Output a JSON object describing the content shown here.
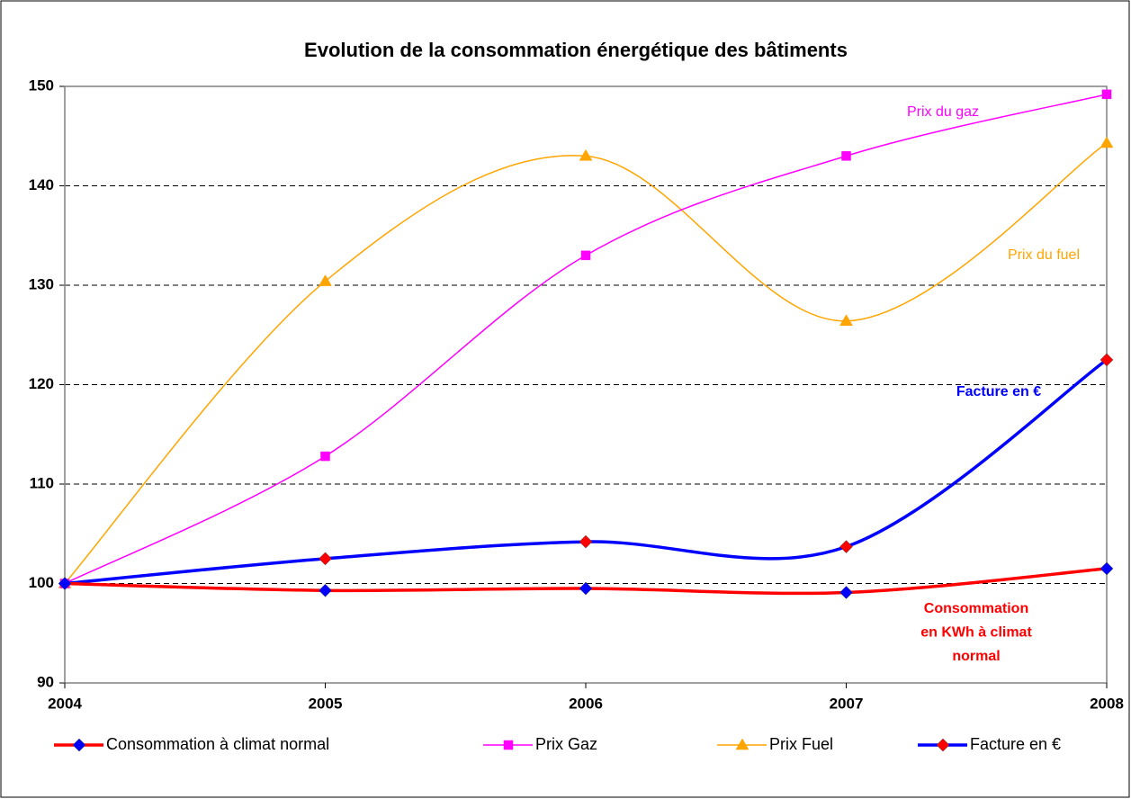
{
  "chart_data": {
    "type": "line",
    "title": "Evolution de la consommation énergétique des bâtiments",
    "categories": [
      "2004",
      "2005",
      "2006",
      "2007",
      "2008"
    ],
    "series": [
      {
        "name": "Consommation à climat normal",
        "color": "#ff0000",
        "marker": "diamond",
        "marker_color": "#0000ff",
        "values": [
          100,
          99.3,
          99.5,
          99.1,
          101.5
        ]
      },
      {
        "name": "Prix Gaz",
        "color": "#ff00ff",
        "marker": "square",
        "marker_color": "#ff00ff",
        "values": [
          100,
          112.8,
          133,
          143,
          149.2
        ]
      },
      {
        "name": "Prix Fuel",
        "color": "#ffa500",
        "marker": "triangle",
        "marker_color": "#ffa500",
        "values": [
          100,
          130.4,
          143,
          126.4,
          144.3
        ]
      },
      {
        "name": "Facture en €",
        "color": "#0000ff",
        "marker": "diamond",
        "marker_color": "#ff0000",
        "values": [
          100,
          102.5,
          104.2,
          103.7,
          122.5
        ]
      }
    ],
    "ylim": [
      90,
      150
    ],
    "yticks": [
      90,
      100,
      110,
      120,
      130,
      140,
      150
    ],
    "grid": true,
    "smooth": true,
    "legend": "bottom",
    "annotations": [
      {
        "lines": [
          "Prix du gaz"
        ],
        "color": "#ff00ff",
        "bold": false
      },
      {
        "lines": [
          "Prix du fuel"
        ],
        "color": "#ffa500",
        "bold": false
      },
      {
        "lines": [
          "Facture en €"
        ],
        "color": "#0000ff",
        "bold": true
      },
      {
        "lines": [
          "Consommation",
          "en KWh à climat",
          "normal"
        ],
        "color": "#ff0000",
        "bold": true
      }
    ]
  }
}
